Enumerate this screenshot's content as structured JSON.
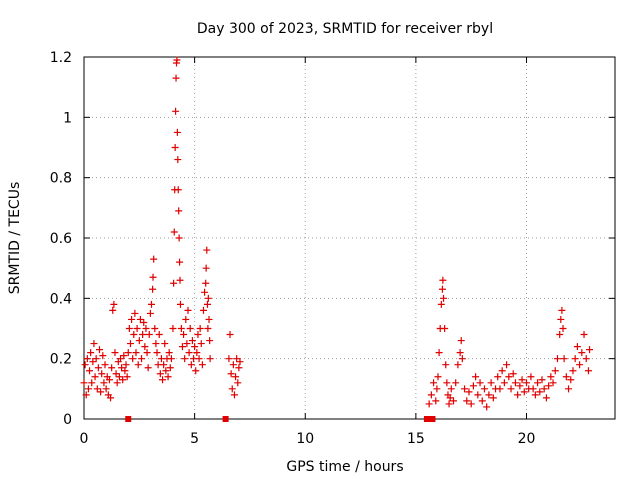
{
  "chart_data": {
    "type": "scatter",
    "title": "Day 300 of 2023, SRMTID for receiver rbyl",
    "xlabel": "GPS time / hours",
    "ylabel": "SRMTID / TECUs",
    "xlim": [
      0,
      24
    ],
    "ylim": [
      0,
      1.2
    ],
    "grid": true,
    "xticks": [
      "0",
      "5",
      "10",
      "15",
      "20"
    ],
    "xtick_values": [
      0,
      5,
      10,
      15,
      20
    ],
    "yticks": [
      "0",
      "0.2",
      "0.4",
      "0.6",
      "0.8",
      "1",
      "1.2"
    ],
    "ytick_values": [
      0,
      0.2,
      0.4,
      0.6,
      0.8,
      1.0,
      1.2
    ],
    "marker": "+",
    "color": "#e00000",
    "series": [
      {
        "name": "SRMTID",
        "points": [
          [
            0.0,
            0.12
          ],
          [
            0.05,
            0.18
          ],
          [
            0.1,
            0.08
          ],
          [
            0.15,
            0.2
          ],
          [
            0.2,
            0.1
          ],
          [
            0.25,
            0.16
          ],
          [
            0.3,
            0.22
          ],
          [
            0.35,
            0.12
          ],
          [
            0.4,
            0.19
          ],
          [
            0.45,
            0.25
          ],
          [
            0.5,
            0.14
          ],
          [
            0.55,
            0.2
          ],
          [
            0.6,
            0.1
          ],
          [
            0.65,
            0.17
          ],
          [
            0.7,
            0.23
          ],
          [
            0.75,
            0.09
          ],
          [
            0.8,
            0.15
          ],
          [
            0.85,
            0.21
          ],
          [
            0.9,
            0.12
          ],
          [
            0.95,
            0.18
          ],
          [
            1.0,
            0.1
          ],
          [
            1.05,
            0.14
          ],
          [
            1.1,
            0.08
          ],
          [
            1.15,
            0.13
          ],
          [
            1.2,
            0.07
          ],
          [
            1.25,
            0.17
          ],
          [
            1.3,
            0.36
          ],
          [
            1.35,
            0.38
          ],
          [
            1.4,
            0.22
          ],
          [
            1.45,
            0.15
          ],
          [
            1.5,
            0.12
          ],
          [
            1.55,
            0.19
          ],
          [
            1.6,
            0.14
          ],
          [
            1.65,
            0.2
          ],
          [
            1.7,
            0.17
          ],
          [
            1.75,
            0.13
          ],
          [
            1.8,
            0.21
          ],
          [
            1.85,
            0.16
          ],
          [
            1.9,
            0.18
          ],
          [
            1.95,
            0.14
          ],
          [
            2.0,
            0.22
          ],
          [
            2.05,
            0.3
          ],
          [
            2.1,
            0.25
          ],
          [
            2.15,
            0.33
          ],
          [
            2.2,
            0.2
          ],
          [
            2.25,
            0.28
          ],
          [
            2.3,
            0.35
          ],
          [
            2.35,
            0.22
          ],
          [
            2.4,
            0.3
          ],
          [
            2.45,
            0.18
          ],
          [
            2.5,
            0.26
          ],
          [
            2.55,
            0.33
          ],
          [
            2.6,
            0.2
          ],
          [
            2.65,
            0.28
          ],
          [
            2.7,
            0.32
          ],
          [
            2.75,
            0.24
          ],
          [
            2.8,
            0.3
          ],
          [
            2.85,
            0.22
          ],
          [
            2.9,
            0.17
          ],
          [
            2.95,
            0.28
          ],
          [
            3.0,
            0.35
          ],
          [
            3.05,
            0.38
          ],
          [
            3.1,
            0.43
          ],
          [
            3.12,
            0.47
          ],
          [
            3.15,
            0.53
          ],
          [
            3.2,
            0.3
          ],
          [
            3.25,
            0.25
          ],
          [
            3.3,
            0.22
          ],
          [
            3.35,
            0.18
          ],
          [
            3.4,
            0.28
          ],
          [
            3.45,
            0.15
          ],
          [
            3.5,
            0.2
          ],
          [
            3.55,
            0.13
          ],
          [
            3.6,
            0.18
          ],
          [
            3.65,
            0.25
          ],
          [
            3.7,
            0.16
          ],
          [
            3.75,
            0.2
          ],
          [
            3.8,
            0.14
          ],
          [
            3.85,
            0.22
          ],
          [
            3.9,
            0.17
          ],
          [
            3.95,
            0.2
          ],
          [
            4.02,
            0.3
          ],
          [
            4.05,
            0.45
          ],
          [
            4.08,
            0.62
          ],
          [
            4.1,
            0.76
          ],
          [
            4.12,
            0.9
          ],
          [
            4.14,
            1.02
          ],
          [
            4.16,
            1.13
          ],
          [
            4.18,
            1.18
          ],
          [
            4.2,
            1.19
          ],
          [
            4.22,
            0.95
          ],
          [
            4.24,
            0.86
          ],
          [
            4.26,
            0.76
          ],
          [
            4.28,
            0.69
          ],
          [
            4.3,
            0.6
          ],
          [
            4.32,
            0.52
          ],
          [
            4.34,
            0.46
          ],
          [
            4.36,
            0.38
          ],
          [
            4.4,
            0.3
          ],
          [
            4.45,
            0.24
          ],
          [
            4.5,
            0.28
          ],
          [
            4.55,
            0.2
          ],
          [
            4.6,
            0.33
          ],
          [
            4.65,
            0.25
          ],
          [
            4.7,
            0.36
          ],
          [
            4.75,
            0.22
          ],
          [
            4.8,
            0.3
          ],
          [
            4.85,
            0.18
          ],
          [
            4.9,
            0.26
          ],
          [
            4.95,
            0.2
          ],
          [
            5.0,
            0.24
          ],
          [
            5.05,
            0.16
          ],
          [
            5.1,
            0.22
          ],
          [
            5.15,
            0.28
          ],
          [
            5.2,
            0.2
          ],
          [
            5.25,
            0.3
          ],
          [
            5.3,
            0.25
          ],
          [
            5.35,
            0.18
          ],
          [
            5.4,
            0.36
          ],
          [
            5.45,
            0.42
          ],
          [
            5.5,
            0.45
          ],
          [
            5.52,
            0.5
          ],
          [
            5.55,
            0.56
          ],
          [
            5.58,
            0.38
          ],
          [
            5.6,
            0.3
          ],
          [
            5.62,
            0.4
          ],
          [
            5.65,
            0.33
          ],
          [
            5.68,
            0.26
          ],
          [
            5.7,
            0.2
          ],
          [
            6.55,
            0.2
          ],
          [
            6.6,
            0.28
          ],
          [
            6.65,
            0.15
          ],
          [
            6.7,
            0.1
          ],
          [
            6.75,
            0.18
          ],
          [
            6.8,
            0.08
          ],
          [
            6.85,
            0.14
          ],
          [
            6.9,
            0.2
          ],
          [
            6.95,
            0.12
          ],
          [
            7.0,
            0.17
          ],
          [
            7.05,
            0.19
          ],
          [
            15.6,
            0.05
          ],
          [
            15.7,
            0.08
          ],
          [
            15.8,
            0.12
          ],
          [
            15.9,
            0.06
          ],
          [
            15.95,
            0.1
          ],
          [
            16.0,
            0.14
          ],
          [
            16.05,
            0.22
          ],
          [
            16.1,
            0.3
          ],
          [
            16.15,
            0.38
          ],
          [
            16.2,
            0.43
          ],
          [
            16.22,
            0.46
          ],
          [
            16.25,
            0.4
          ],
          [
            16.3,
            0.3
          ],
          [
            16.35,
            0.18
          ],
          [
            16.4,
            0.12
          ],
          [
            16.45,
            0.08
          ],
          [
            16.5,
            0.05
          ],
          [
            16.55,
            0.07
          ],
          [
            16.6,
            0.1
          ],
          [
            16.7,
            0.06
          ],
          [
            16.8,
            0.12
          ],
          [
            16.9,
            0.18
          ],
          [
            17.0,
            0.22
          ],
          [
            17.05,
            0.26
          ],
          [
            17.1,
            0.2
          ],
          [
            17.2,
            0.1
          ],
          [
            17.3,
            0.06
          ],
          [
            17.4,
            0.09
          ],
          [
            17.5,
            0.05
          ],
          [
            17.6,
            0.11
          ],
          [
            17.7,
            0.14
          ],
          [
            17.8,
            0.08
          ],
          [
            17.9,
            0.12
          ],
          [
            18.0,
            0.06
          ],
          [
            18.1,
            0.1
          ],
          [
            18.2,
            0.04
          ],
          [
            18.3,
            0.08
          ],
          [
            18.4,
            0.12
          ],
          [
            18.5,
            0.07
          ],
          [
            18.6,
            0.1
          ],
          [
            18.7,
            0.14
          ],
          [
            18.8,
            0.1
          ],
          [
            18.9,
            0.16
          ],
          [
            19.0,
            0.12
          ],
          [
            19.1,
            0.18
          ],
          [
            19.2,
            0.14
          ],
          [
            19.3,
            0.1
          ],
          [
            19.4,
            0.15
          ],
          [
            19.5,
            0.12
          ],
          [
            19.6,
            0.08
          ],
          [
            19.7,
            0.11
          ],
          [
            19.8,
            0.13
          ],
          [
            19.9,
            0.09
          ],
          [
            20.0,
            0.12
          ],
          [
            20.1,
            0.1
          ],
          [
            20.2,
            0.14
          ],
          [
            20.3,
            0.1
          ],
          [
            20.4,
            0.08
          ],
          [
            20.5,
            0.12
          ],
          [
            20.6,
            0.09
          ],
          [
            20.7,
            0.13
          ],
          [
            20.8,
            0.1
          ],
          [
            20.9,
            0.07
          ],
          [
            21.0,
            0.11
          ],
          [
            21.1,
            0.14
          ],
          [
            21.2,
            0.12
          ],
          [
            21.3,
            0.16
          ],
          [
            21.4,
            0.2
          ],
          [
            21.5,
            0.28
          ],
          [
            21.55,
            0.33
          ],
          [
            21.6,
            0.36
          ],
          [
            21.65,
            0.3
          ],
          [
            21.7,
            0.2
          ],
          [
            21.8,
            0.14
          ],
          [
            21.9,
            0.1
          ],
          [
            22.0,
            0.13
          ],
          [
            22.1,
            0.16
          ],
          [
            22.2,
            0.2
          ],
          [
            22.3,
            0.24
          ],
          [
            22.4,
            0.18
          ],
          [
            22.5,
            0.22
          ],
          [
            22.6,
            0.28
          ],
          [
            22.7,
            0.2
          ],
          [
            22.8,
            0.16
          ],
          [
            22.85,
            0.23
          ]
        ],
        "zero_markers": [
          2.0,
          6.4,
          15.5,
          15.75
        ]
      }
    ]
  }
}
